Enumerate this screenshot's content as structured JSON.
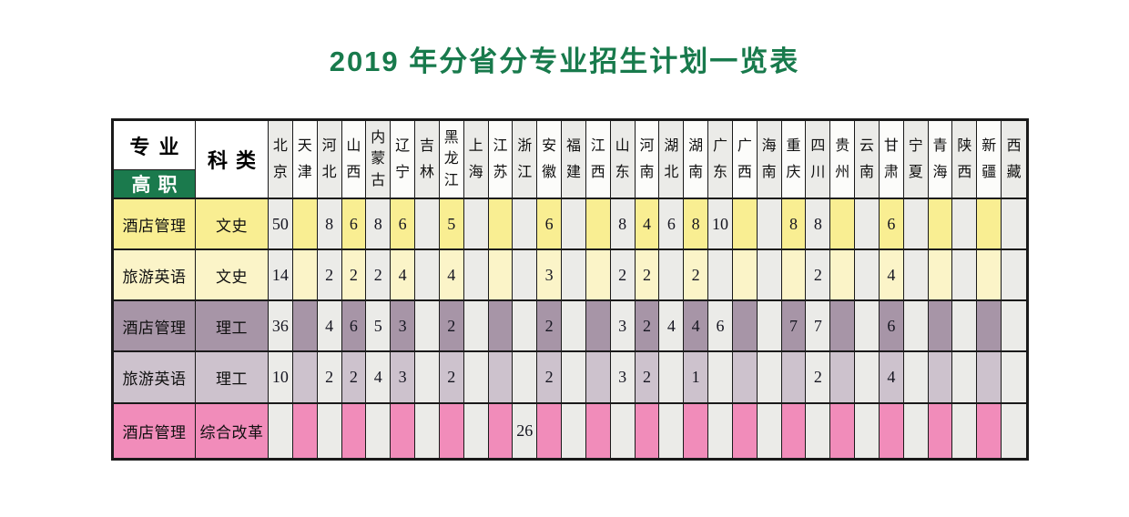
{
  "title": "2019 年分省分专业招生计划一览表",
  "header": {
    "major": "专业",
    "level": "高职",
    "category": "科类"
  },
  "provinces": [
    "北京",
    "天津",
    "河北",
    "山西",
    "内蒙古",
    "辽宁",
    "吉林",
    "黑龙江",
    "上海",
    "江苏",
    "浙江",
    "安徽",
    "福建",
    "江西",
    "山东",
    "河南",
    "湖北",
    "湖南",
    "广东",
    "广西",
    "海南",
    "重庆",
    "四川",
    "贵州",
    "云南",
    "甘肃",
    "宁夏",
    "青海",
    "陕西",
    "新疆",
    "西藏"
  ],
  "rows": [
    {
      "major": "酒店管理",
      "category": "文史",
      "theme": "row1_yellow",
      "values": [
        "50",
        "",
        "8",
        "6",
        "8",
        "6",
        "",
        "5",
        "",
        "",
        "",
        "6",
        "",
        "",
        "8",
        "4",
        "6",
        "8",
        "10",
        "",
        "",
        "8",
        "8",
        "",
        "",
        "6",
        "",
        "",
        "",
        "",
        ""
      ]
    },
    {
      "major": "旅游英语",
      "category": "文史",
      "theme": "row2_yellow_light",
      "values": [
        "14",
        "",
        "2",
        "2",
        "2",
        "4",
        "",
        "4",
        "",
        "",
        "",
        "3",
        "",
        "",
        "2",
        "2",
        "",
        "2",
        "",
        "",
        "",
        "",
        "2",
        "",
        "",
        "4",
        "",
        "",
        "",
        "",
        ""
      ]
    },
    {
      "major": "酒店管理",
      "category": "理工",
      "theme": "row3_purple",
      "values": [
        "36",
        "",
        "4",
        "6",
        "5",
        "3",
        "",
        "2",
        "",
        "",
        "",
        "2",
        "",
        "",
        "3",
        "2",
        "4",
        "4",
        "6",
        "",
        "",
        "7",
        "7",
        "",
        "",
        "6",
        "",
        "",
        "",
        "",
        ""
      ]
    },
    {
      "major": "旅游英语",
      "category": "理工",
      "theme": "row4_purple_light",
      "values": [
        "10",
        "",
        "2",
        "2",
        "4",
        "3",
        "",
        "2",
        "",
        "",
        "",
        "2",
        "",
        "",
        "3",
        "2",
        "",
        "1",
        "",
        "",
        "",
        "",
        "2",
        "",
        "",
        "4",
        "",
        "",
        "",
        "",
        ""
      ]
    },
    {
      "major": "酒店管理",
      "category": "综合改革",
      "theme": "row5_pink",
      "values": [
        "",
        "",
        "",
        "",
        "",
        "",
        "",
        "",
        "",
        "",
        "26",
        "",
        "",
        "",
        "",
        "",
        "",
        "",
        "",
        "",
        "",
        "",
        "",
        "",
        "",
        "",
        "",
        "",
        "",
        "",
        ""
      ]
    }
  ],
  "colors": {
    "title_green": "#187a4c",
    "header_green": "#1b7a4d",
    "stripe_grey": "#ebebe8",
    "header_white": "#fcfcfa",
    "border": "#1a1a1a",
    "row1_yellow": "#f9ee92",
    "row2_yellow_light": "#fbf4c8",
    "row3_purple": "#a795a7",
    "row4_purple_light": "#cdc2cd",
    "row5_pink": "#f18cba"
  }
}
